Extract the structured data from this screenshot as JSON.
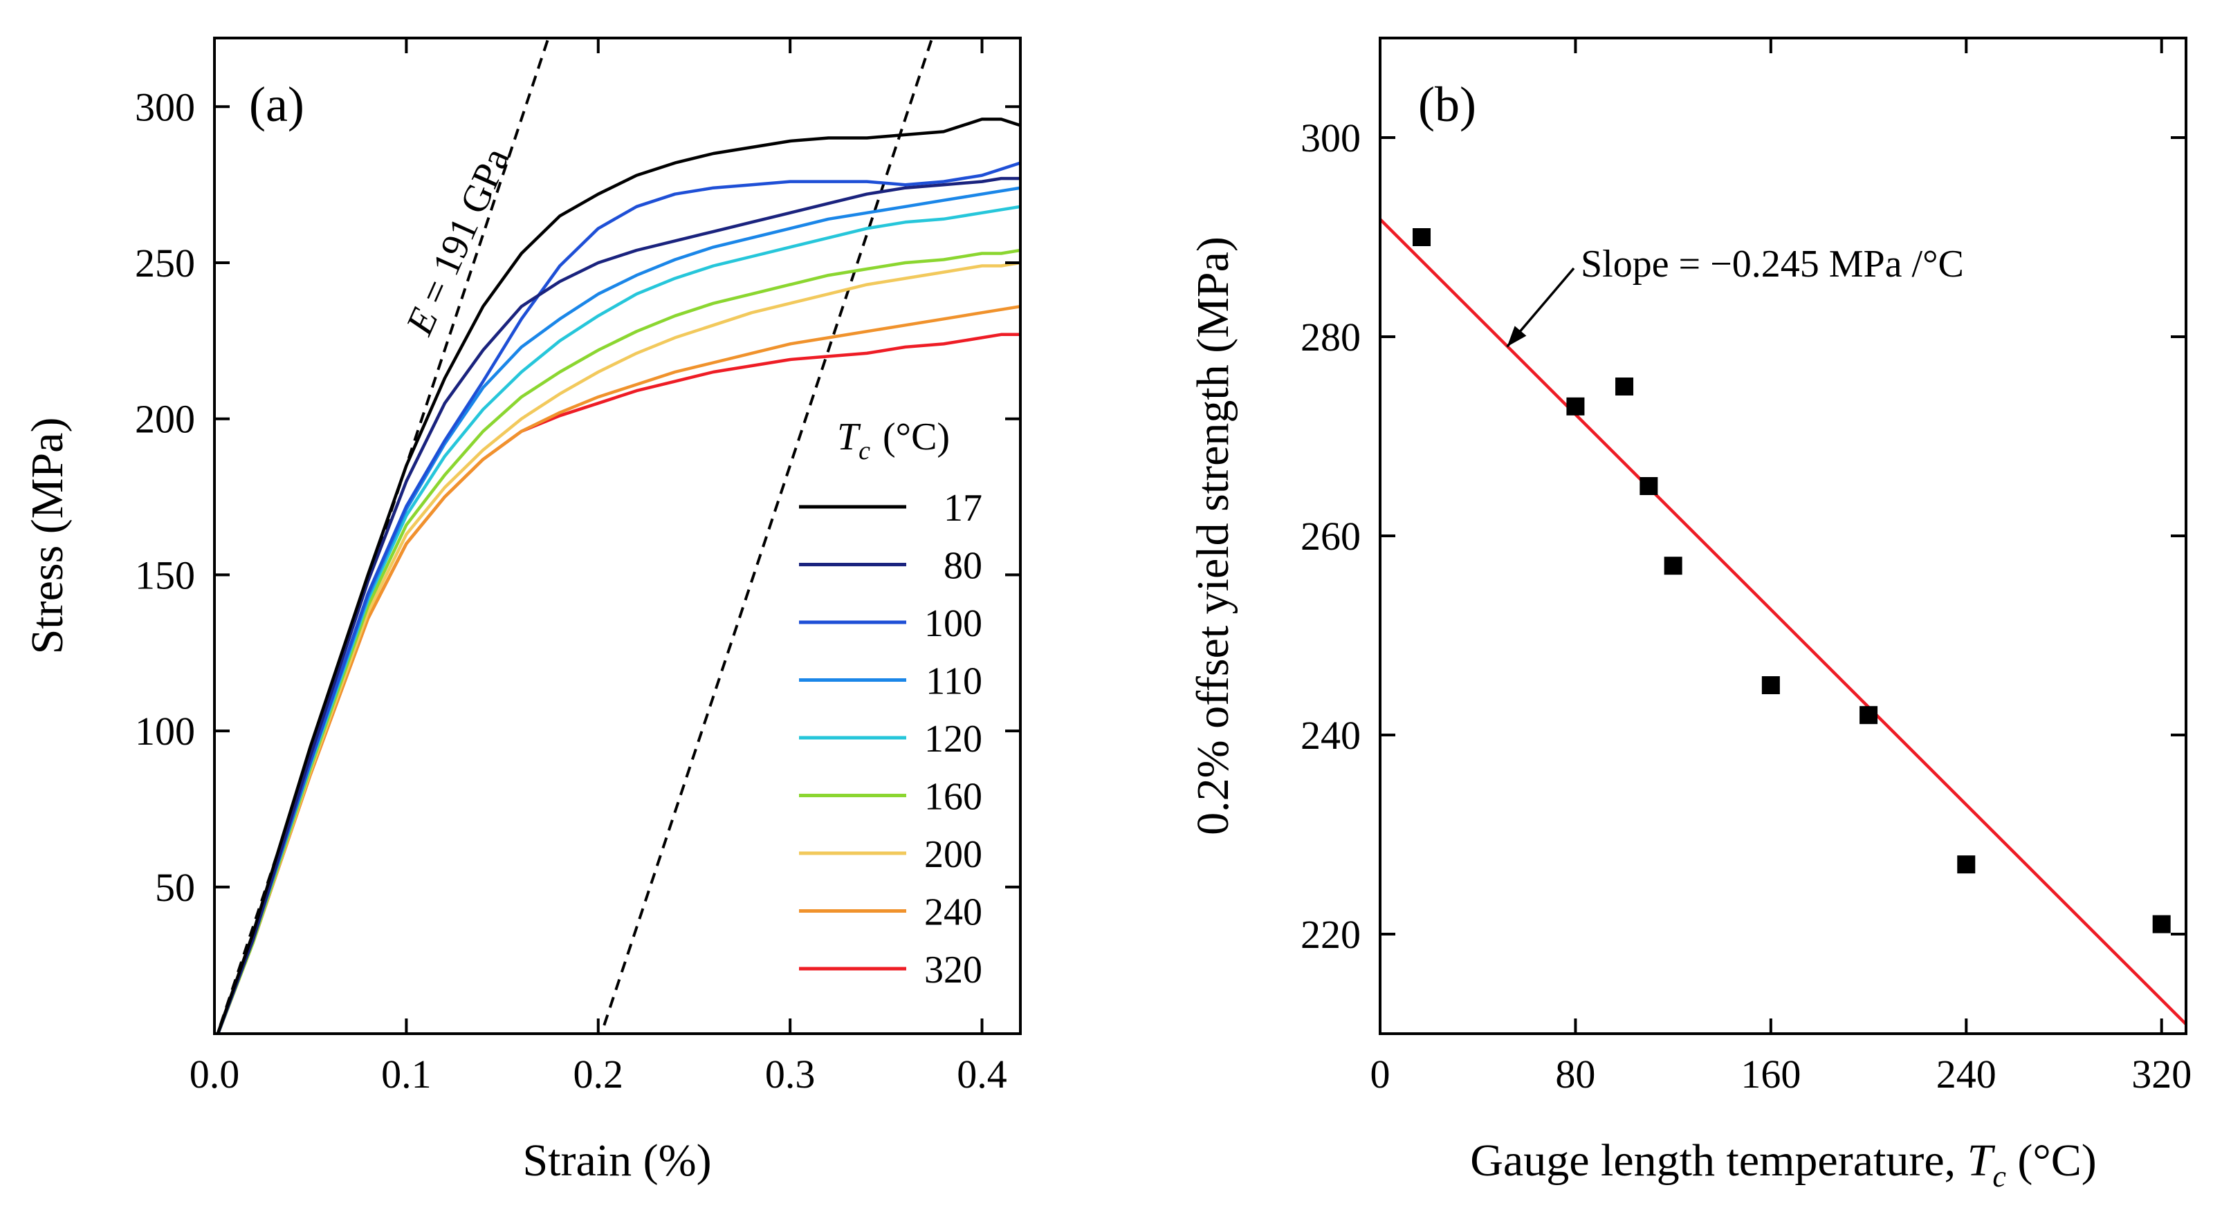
{
  "chart_data": [
    {
      "panel": "(a)",
      "type": "line",
      "xlabel": "Strain (%)",
      "ylabel": "Stress (MPa)",
      "xlim": [
        0,
        0.42
      ],
      "ylim": [
        3,
        322
      ],
      "xticks": [
        0.0,
        0.1,
        0.2,
        0.3,
        0.4
      ],
      "xtick_labels": [
        "0.0",
        "0.1",
        "0.2",
        "0.3",
        "0.4"
      ],
      "yticks": [
        50,
        100,
        150,
        200,
        250,
        300
      ],
      "ytick_labels": [
        "50",
        "100",
        "150",
        "200",
        "250",
        "300"
      ],
      "legend_title_symbol": "T",
      "legend_title_sub": "c",
      "legend_title_unit": "(°C)",
      "legend_position": "lower-right",
      "annotation_modulus": {
        "prefix": "E",
        "text": " = 191 GPa"
      },
      "reference_lines": [
        {
          "name": "elastic-modulus-line",
          "x": [
            0.0,
            0.174
          ],
          "y": [
            0,
            322
          ]
        },
        {
          "name": "offset-line",
          "x": [
            0.2,
            0.374
          ],
          "y": [
            0,
            322
          ]
        }
      ],
      "series": [
        {
          "name": "17",
          "color": "#000000",
          "x": [
            0,
            0.02,
            0.05,
            0.08,
            0.1,
            0.12,
            0.14,
            0.16,
            0.18,
            0.2,
            0.22,
            0.24,
            0.26,
            0.28,
            0.3,
            0.32,
            0.34,
            0.36,
            0.38,
            0.4,
            0.41,
            0.42
          ],
          "y": [
            0,
            35,
            95,
            150,
            185,
            213,
            236,
            253,
            265,
            272,
            278,
            282,
            285,
            287,
            289,
            290,
            290,
            291,
            292,
            296,
            296,
            294
          ]
        },
        {
          "name": "80",
          "color": "#1a237e",
          "x": [
            0,
            0.02,
            0.05,
            0.08,
            0.1,
            0.12,
            0.14,
            0.16,
            0.18,
            0.2,
            0.22,
            0.24,
            0.26,
            0.28,
            0.3,
            0.32,
            0.34,
            0.36,
            0.38,
            0.4,
            0.41,
            0.42
          ],
          "y": [
            0,
            33,
            92,
            148,
            180,
            205,
            222,
            236,
            244,
            250,
            254,
            257,
            260,
            263,
            266,
            269,
            272,
            274,
            275,
            276,
            277,
            277
          ]
        },
        {
          "name": "100",
          "color": "#1e4fd6",
          "x": [
            0,
            0.02,
            0.05,
            0.08,
            0.1,
            0.12,
            0.14,
            0.16,
            0.18,
            0.2,
            0.22,
            0.24,
            0.26,
            0.28,
            0.3,
            0.32,
            0.34,
            0.36,
            0.38,
            0.4,
            0.41,
            0.42
          ],
          "y": [
            0,
            33,
            90,
            144,
            172,
            193,
            212,
            232,
            249,
            261,
            268,
            272,
            274,
            275,
            276,
            276,
            276,
            275,
            276,
            278,
            280,
            282
          ]
        },
        {
          "name": "110",
          "color": "#1a86e8",
          "x": [
            0,
            0.02,
            0.05,
            0.08,
            0.1,
            0.12,
            0.14,
            0.16,
            0.18,
            0.2,
            0.22,
            0.24,
            0.26,
            0.28,
            0.3,
            0.32,
            0.34,
            0.36,
            0.38,
            0.4,
            0.41,
            0.42
          ],
          "y": [
            0,
            33,
            90,
            143,
            171,
            192,
            210,
            223,
            232,
            240,
            246,
            251,
            255,
            258,
            261,
            264,
            266,
            268,
            270,
            272,
            273,
            274
          ]
        },
        {
          "name": "120",
          "color": "#26c6da",
          "x": [
            0,
            0.02,
            0.05,
            0.08,
            0.1,
            0.12,
            0.14,
            0.16,
            0.18,
            0.2,
            0.22,
            0.24,
            0.26,
            0.28,
            0.3,
            0.32,
            0.34,
            0.36,
            0.38,
            0.4,
            0.41,
            0.42
          ],
          "y": [
            0,
            33,
            89,
            142,
            169,
            188,
            203,
            215,
            225,
            233,
            240,
            245,
            249,
            252,
            255,
            258,
            261,
            263,
            264,
            266,
            267,
            268
          ]
        },
        {
          "name": "160",
          "color": "#8bd630",
          "x": [
            0,
            0.02,
            0.05,
            0.08,
            0.1,
            0.12,
            0.14,
            0.16,
            0.18,
            0.2,
            0.22,
            0.24,
            0.26,
            0.28,
            0.3,
            0.32,
            0.34,
            0.36,
            0.38,
            0.4,
            0.41,
            0.42
          ],
          "y": [
            0,
            32,
            88,
            140,
            166,
            182,
            196,
            207,
            215,
            222,
            228,
            233,
            237,
            240,
            243,
            246,
            248,
            250,
            251,
            253,
            253,
            254
          ]
        },
        {
          "name": "200",
          "color": "#f2c95c",
          "x": [
            0,
            0.02,
            0.05,
            0.08,
            0.1,
            0.12,
            0.14,
            0.16,
            0.18,
            0.2,
            0.22,
            0.24,
            0.26,
            0.28,
            0.3,
            0.32,
            0.34,
            0.36,
            0.38,
            0.4,
            0.41,
            0.42
          ],
          "y": [
            0,
            32,
            87,
            138,
            163,
            178,
            190,
            200,
            208,
            215,
            221,
            226,
            230,
            234,
            237,
            240,
            243,
            245,
            247,
            249,
            249,
            250
          ]
        },
        {
          "name": "240",
          "color": "#f0922c",
          "x": [
            0,
            0.02,
            0.05,
            0.08,
            0.1,
            0.12,
            0.14,
            0.16,
            0.18,
            0.2,
            0.22,
            0.24,
            0.26,
            0.28,
            0.3,
            0.32,
            0.34,
            0.36,
            0.38,
            0.4,
            0.41,
            0.42
          ],
          "y": [
            0,
            32,
            86,
            136,
            160,
            175,
            187,
            196,
            202,
            207,
            211,
            215,
            218,
            221,
            224,
            226,
            228,
            230,
            232,
            234,
            235,
            236
          ]
        },
        {
          "name": "320",
          "color": "#ee1c25",
          "x": [
            0,
            0.02,
            0.05,
            0.08,
            0.1,
            0.12,
            0.14,
            0.16,
            0.18,
            0.2,
            0.22,
            0.24,
            0.26,
            0.28,
            0.3,
            0.32,
            0.34,
            0.36,
            0.38,
            0.4,
            0.41,
            0.42
          ],
          "y": [
            0,
            32,
            86,
            136,
            160,
            175,
            187,
            196,
            201,
            205,
            209,
            212,
            215,
            217,
            219,
            220,
            221,
            223,
            224,
            226,
            227,
            227
          ]
        }
      ]
    },
    {
      "panel": "(b)",
      "type": "scatter",
      "xlabel_text": "Gauge length temperature, ",
      "xlabel_symbol": "T",
      "xlabel_sub": "c",
      "xlabel_unit": " (°C)",
      "ylabel": "0.2% offset yield strength (MPa)",
      "xlim": [
        0,
        330
      ],
      "ylim": [
        210,
        310
      ],
      "xticks": [
        0,
        80,
        160,
        240,
        320
      ],
      "xtick_labels": [
        "0",
        "80",
        "160",
        "240",
        "320"
      ],
      "yticks": [
        220,
        240,
        260,
        280,
        300
      ],
      "ytick_labels": [
        "220",
        "240",
        "260",
        "280",
        "300"
      ],
      "points": [
        {
          "x": 17,
          "y": 290
        },
        {
          "x": 80,
          "y": 273
        },
        {
          "x": 100,
          "y": 275
        },
        {
          "x": 110,
          "y": 265
        },
        {
          "x": 120,
          "y": 257
        },
        {
          "x": 160,
          "y": 245
        },
        {
          "x": 200,
          "y": 242
        },
        {
          "x": 240,
          "y": 227
        },
        {
          "x": 320,
          "y": 221
        }
      ],
      "fit_line": {
        "color": "#ee1c25",
        "slope": -0.245,
        "intercept": 291.8
      },
      "annotation": {
        "text": "Slope = −0.245 MPa /°C",
        "arrow_target": {
          "x": 52,
          "y": 279
        }
      }
    }
  ]
}
